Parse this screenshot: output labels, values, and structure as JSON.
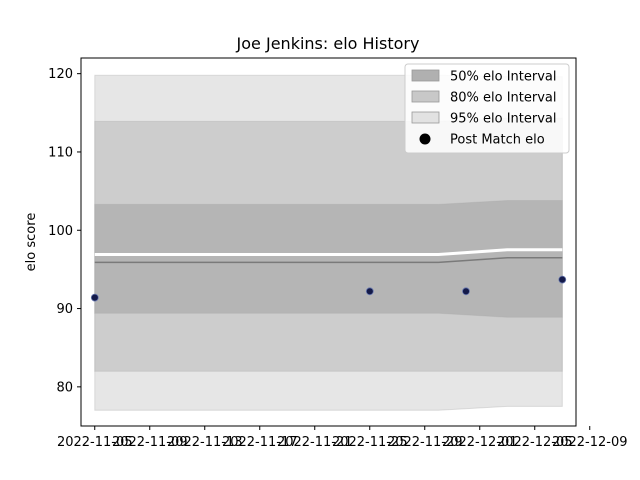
{
  "chart_data": {
    "type": "area",
    "title": "Joe Jenkins: elo History",
    "xlabel": "",
    "ylabel": "elo score",
    "x": [
      "2022-11-05",
      "2022-11-30",
      "2022-12-05",
      "2022-12-09"
    ],
    "x_range": [
      "2022-11-04",
      "2022-12-10"
    ],
    "x_tick_labels": [
      "2022-11-05",
      "2022-11-09",
      "2022-11-13",
      "2022-11-17",
      "2022-11-21",
      "2022-11-25",
      "2022-11-29",
      "2022-12-01",
      "2022-12-05",
      "2022-12-09"
    ],
    "y_ticks": [
      80,
      90,
      100,
      110,
      120
    ],
    "ylim": [
      75,
      122
    ],
    "grid": false,
    "legend_position": "top-right",
    "colors": {
      "band_50": "#b0b0b0",
      "band_80": "#c8c8c8",
      "band_95": "#e2e2e2",
      "mean_line": "#7a7a7a",
      "marker": "#141a4a"
    },
    "series": [
      {
        "name": "95% elo Interval",
        "kind": "band",
        "lower": [
          77,
          77,
          77.5,
          77.5
        ],
        "upper": [
          119.8,
          119.8,
          119.6,
          119.6
        ]
      },
      {
        "name": "80% elo Interval",
        "kind": "band",
        "lower": [
          82,
          82,
          82,
          82
        ],
        "upper": [
          113.9,
          113.9,
          114.3,
          114.3
        ]
      },
      {
        "name": "50% elo Interval",
        "kind": "band",
        "lower": [
          89.4,
          89.4,
          88.9,
          88.9
        ],
        "upper": [
          103.3,
          103.3,
          103.8,
          103.8
        ]
      },
      {
        "name": "Mean",
        "kind": "line",
        "values": [
          95.9,
          95.9,
          96.5,
          96.5
        ]
      },
      {
        "name": "Post Match elo",
        "kind": "points",
        "x": [
          "2022-11-05",
          "2022-11-25",
          "2022-12-02",
          "2022-12-09"
        ],
        "values": [
          91.4,
          92.2,
          92.2,
          93.7
        ]
      }
    ]
  }
}
